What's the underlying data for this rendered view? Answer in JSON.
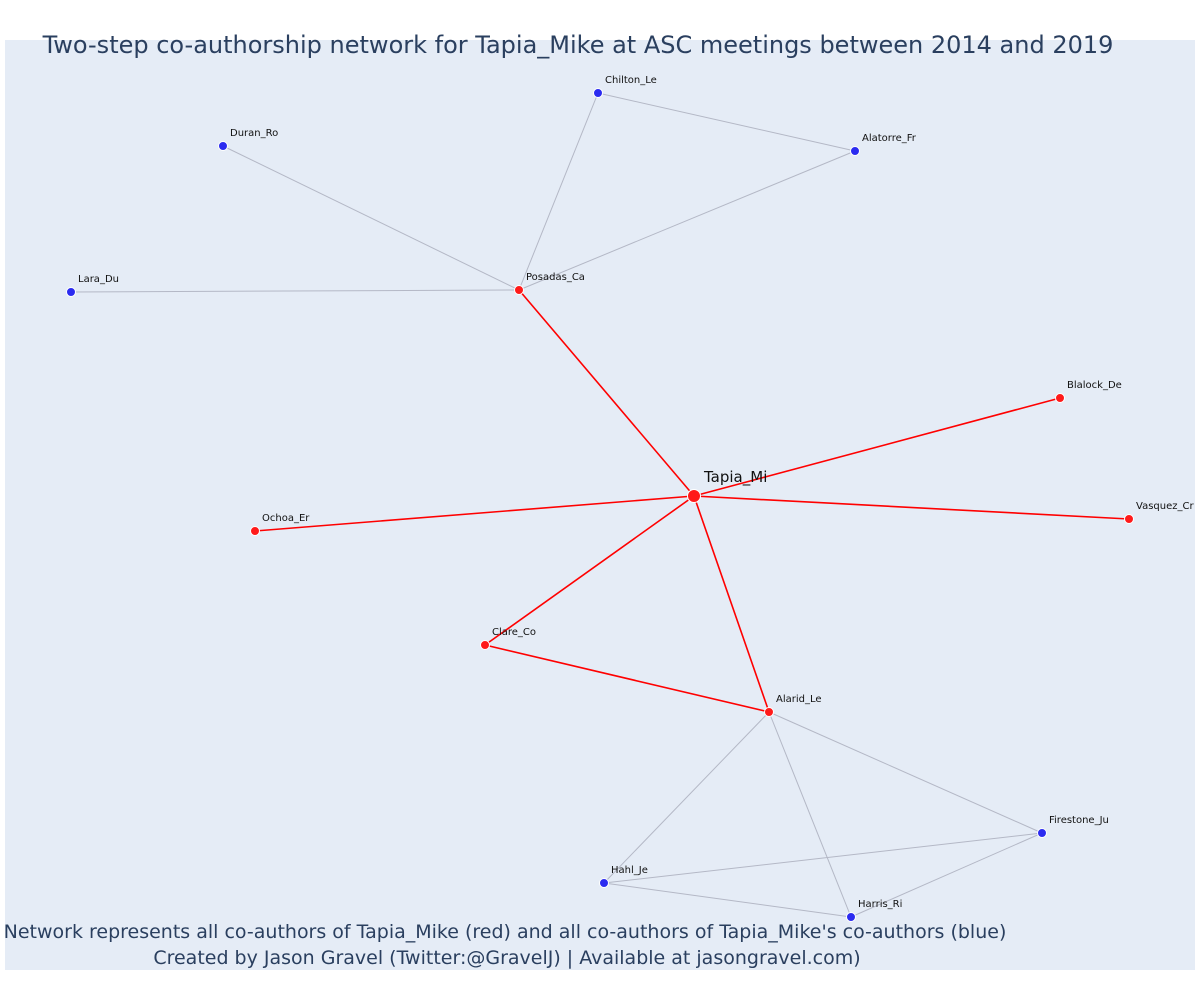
{
  "title": "Two-step co-authorship network for Tapia_Mike at ASC meetings between 2014 and 2019",
  "caption": {
    "line1": "Network represents all co-authors of Tapia_Mike (red) and all co-authors of Tapia_Mike's co-authors (blue)",
    "line2": "Created by Jason Gravel (Twitter:@GravelJ) | Available at jasongravel.com)"
  },
  "colors": {
    "background": "#e5ecf6",
    "red_node": "#ff1a1a",
    "blue_node": "#2b2bf0",
    "red_edge": "#ff0000",
    "grey_edge": "#b4b8c6",
    "text": "#2a3f5f"
  },
  "nodes": [
    {
      "id": "Tapia_Mi",
      "label": "Tapia_Mi",
      "group": "focal"
    },
    {
      "id": "Posadas_Ca",
      "label": "Posadas_Ca",
      "group": "red"
    },
    {
      "id": "Blalock_De",
      "label": "Blalock_De",
      "group": "red"
    },
    {
      "id": "Vasquez_Cr",
      "label": "Vasquez_Cr",
      "group": "red"
    },
    {
      "id": "Ochoa_Er",
      "label": "Ochoa_Er",
      "group": "red"
    },
    {
      "id": "Clare_Co",
      "label": "Clare_Co",
      "group": "red"
    },
    {
      "id": "Alarid_Le",
      "label": "Alarid_Le",
      "group": "red"
    },
    {
      "id": "Chilton_Le",
      "label": "Chilton_Le",
      "group": "blue"
    },
    {
      "id": "Alatorre_Fr",
      "label": "Alatorre_Fr",
      "group": "blue"
    },
    {
      "id": "Duran_Ro",
      "label": "Duran_Ro",
      "group": "blue"
    },
    {
      "id": "Lara_Du",
      "label": "Lara_Du",
      "group": "blue"
    },
    {
      "id": "Firestone_Ju",
      "label": "Firestone_Ju",
      "group": "blue"
    },
    {
      "id": "Hahl_Je",
      "label": "Hahl_Je",
      "group": "blue"
    },
    {
      "id": "Harris_Ri",
      "label": "Harris_Ri",
      "group": "blue"
    }
  ],
  "edges": [
    {
      "source": "Tapia_Mi",
      "target": "Posadas_Ca",
      "type": "red"
    },
    {
      "source": "Tapia_Mi",
      "target": "Blalock_De",
      "type": "red"
    },
    {
      "source": "Tapia_Mi",
      "target": "Vasquez_Cr",
      "type": "red"
    },
    {
      "source": "Tapia_Mi",
      "target": "Ochoa_Er",
      "type": "red"
    },
    {
      "source": "Tapia_Mi",
      "target": "Clare_Co",
      "type": "red"
    },
    {
      "source": "Tapia_Mi",
      "target": "Alarid_Le",
      "type": "red"
    },
    {
      "source": "Clare_Co",
      "target": "Alarid_Le",
      "type": "red"
    },
    {
      "source": "Posadas_Ca",
      "target": "Chilton_Le",
      "type": "grey"
    },
    {
      "source": "Posadas_Ca",
      "target": "Alatorre_Fr",
      "type": "grey"
    },
    {
      "source": "Posadas_Ca",
      "target": "Duran_Ro",
      "type": "grey"
    },
    {
      "source": "Posadas_Ca",
      "target": "Lara_Du",
      "type": "grey"
    },
    {
      "source": "Chilton_Le",
      "target": "Alatorre_Fr",
      "type": "grey"
    },
    {
      "source": "Alarid_Le",
      "target": "Firestone_Ju",
      "type": "grey"
    },
    {
      "source": "Alarid_Le",
      "target": "Hahl_Je",
      "type": "grey"
    },
    {
      "source": "Alarid_Le",
      "target": "Harris_Ri",
      "type": "grey"
    },
    {
      "source": "Hahl_Je",
      "target": "Firestone_Ju",
      "type": "grey"
    },
    {
      "source": "Hahl_Je",
      "target": "Harris_Ri",
      "type": "grey"
    },
    {
      "source": "Harris_Ri",
      "target": "Firestone_Ju",
      "type": "grey"
    }
  ]
}
